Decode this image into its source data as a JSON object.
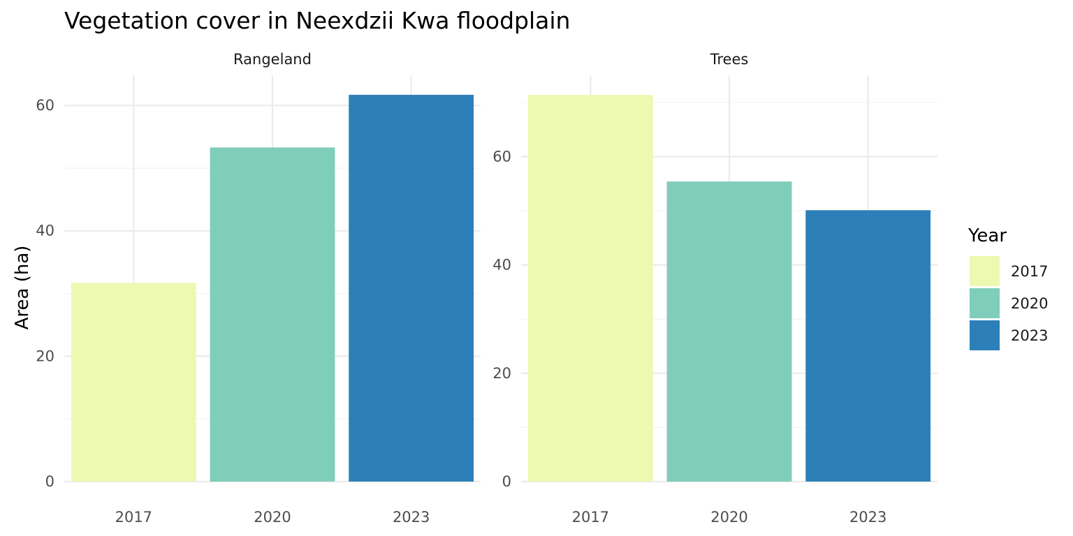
{
  "chart_data": {
    "type": "bar",
    "title": "Vegetation cover in Neexdzii Kwa floodplain",
    "ylabel": "Area (ha)",
    "xlabel": "",
    "categories": [
      "2017",
      "2020",
      "2023"
    ],
    "legend": {
      "title": "Year",
      "position": "right",
      "items": [
        {
          "label": "2017",
          "color": "#edf8b1"
        },
        {
          "label": "2020",
          "color": "#7fcdbb"
        },
        {
          "label": "2023",
          "color": "#2c7fb8"
        }
      ]
    },
    "grid": true,
    "facets": [
      {
        "name": "Rangeland",
        "values": [
          31.7,
          53.3,
          61.7
        ],
        "ylim": [
          0,
          64.8
        ],
        "yticks": [
          0,
          20,
          40,
          60
        ],
        "ytick_labels": [
          "0",
          "20",
          "40",
          "60"
        ]
      },
      {
        "name": "Trees",
        "values": [
          71.4,
          55.4,
          50.1
        ],
        "ylim": [
          0,
          75.0
        ],
        "yticks": [
          0,
          20,
          40,
          60
        ],
        "ytick_labels": [
          "0",
          "20",
          "40",
          "60"
        ]
      }
    ]
  }
}
